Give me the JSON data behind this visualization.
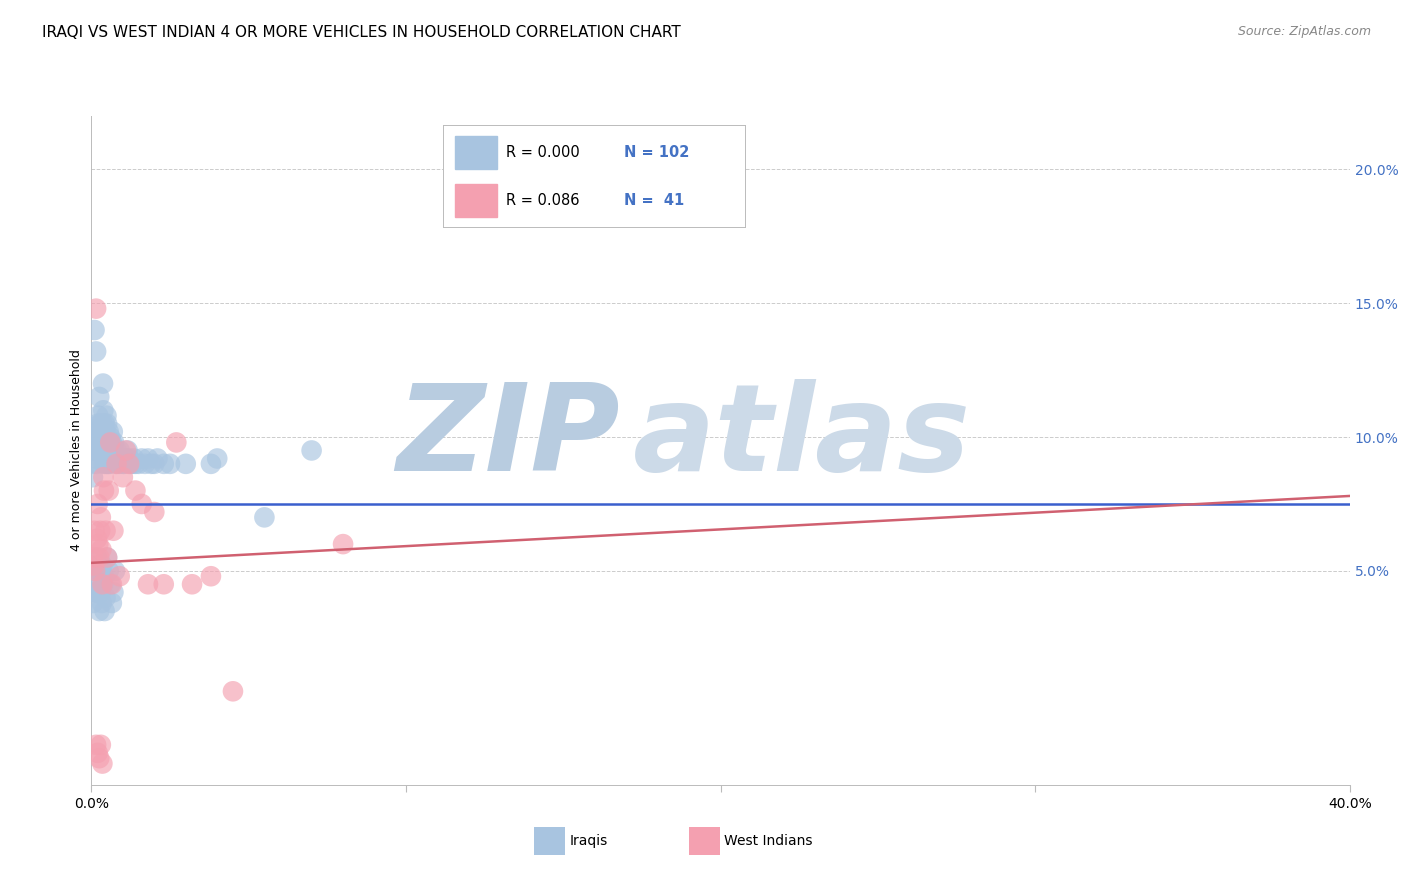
{
  "title": "IRAQI VS WEST INDIAN 4 OR MORE VEHICLES IN HOUSEHOLD CORRELATION CHART",
  "source": "Source: ZipAtlas.com",
  "ylabel": "4 or more Vehicles in Household",
  "xlim": [
    0.0,
    40.0
  ],
  "ylim": [
    -3.0,
    22.0
  ],
  "right_yticks": [
    5.0,
    10.0,
    15.0,
    20.0
  ],
  "right_ytick_labels": [
    "5.0%",
    "10.0%",
    "15.0%",
    "20.0%"
  ],
  "legend_iraqi_r": "0.000",
  "legend_iraqi_n": "102",
  "legend_westindian_r": "0.086",
  "legend_westindian_n": "41",
  "iraqi_color": "#a8c4e0",
  "westindian_color": "#f4a0b0",
  "iraqi_line_color": "#3a5fcd",
  "westindian_line_color": "#d06070",
  "legend_text_color": "#4472c4",
  "title_fontsize": 11,
  "watermark_zip": "ZIP",
  "watermark_atlas": "atlas",
  "watermark_color": "#ccd8e8",
  "background_color": "#ffffff",
  "grid_color": "#cccccc",
  "iraqi_line_y_at_x0": 7.5,
  "iraqi_line_y_at_x40": 7.5,
  "westindian_line_y_at_x0": 5.3,
  "westindian_line_y_at_x40": 7.8,
  "iraqi_x": [
    0.05,
    0.07,
    0.08,
    0.1,
    0.1,
    0.12,
    0.13,
    0.15,
    0.15,
    0.17,
    0.18,
    0.2,
    0.2,
    0.22,
    0.23,
    0.25,
    0.25,
    0.27,
    0.28,
    0.3,
    0.3,
    0.32,
    0.33,
    0.35,
    0.35,
    0.37,
    0.38,
    0.4,
    0.4,
    0.42,
    0.43,
    0.45,
    0.45,
    0.47,
    0.48,
    0.5,
    0.5,
    0.52,
    0.53,
    0.55,
    0.55,
    0.57,
    0.58,
    0.6,
    0.6,
    0.62,
    0.65,
    0.68,
    0.7,
    0.72,
    0.75,
    0.78,
    0.8,
    0.85,
    0.88,
    0.9,
    0.95,
    1.0,
    1.05,
    1.1,
    1.15,
    1.2,
    1.25,
    1.3,
    1.35,
    1.4,
    1.5,
    1.6,
    1.7,
    1.8,
    1.9,
    2.0,
    2.1,
    2.3,
    2.5,
    3.0,
    3.8,
    4.0,
    5.5,
    7.0,
    0.05,
    0.08,
    0.1,
    0.12,
    0.15,
    0.18,
    0.2,
    0.23,
    0.25,
    0.28,
    0.3,
    0.33,
    0.35,
    0.38,
    0.4,
    0.42,
    0.45,
    0.5,
    0.55,
    0.6,
    0.65,
    0.7,
    0.75
  ],
  "iraqi_y": [
    8.5,
    9.0,
    9.5,
    14.0,
    10.0,
    9.5,
    9.8,
    13.2,
    10.2,
    9.5,
    9.0,
    10.5,
    9.2,
    10.8,
    9.5,
    11.5,
    10.0,
    9.8,
    10.5,
    10.2,
    9.5,
    10.0,
    9.8,
    9.5,
    10.5,
    12.0,
    11.0,
    10.0,
    9.0,
    10.5,
    9.8,
    10.2,
    9.0,
    9.5,
    10.8,
    9.0,
    10.5,
    9.8,
    9.0,
    9.5,
    10.2,
    9.8,
    9.0,
    9.5,
    10.0,
    9.2,
    9.8,
    10.2,
    9.5,
    9.8,
    9.2,
    9.0,
    9.5,
    9.2,
    9.0,
    9.5,
    9.2,
    9.0,
    9.0,
    9.2,
    9.5,
    9.2,
    9.0,
    9.0,
    9.2,
    9.0,
    9.0,
    9.2,
    9.0,
    9.2,
    9.0,
    9.0,
    9.2,
    9.0,
    9.0,
    9.0,
    9.0,
    9.2,
    7.0,
    9.5,
    3.8,
    4.2,
    5.0,
    4.5,
    4.2,
    5.5,
    5.2,
    4.8,
    3.5,
    5.0,
    4.2,
    3.8,
    5.2,
    4.5,
    4.8,
    3.5,
    4.0,
    5.5,
    5.0,
    4.5,
    3.8,
    4.2,
    5.0
  ],
  "westindian_x": [
    0.05,
    0.08,
    0.1,
    0.12,
    0.15,
    0.18,
    0.2,
    0.22,
    0.25,
    0.28,
    0.3,
    0.32,
    0.35,
    0.38,
    0.4,
    0.45,
    0.5,
    0.55,
    0.6,
    0.65,
    0.7,
    0.8,
    0.9,
    1.0,
    1.1,
    1.2,
    1.4,
    1.6,
    1.8,
    2.0,
    2.3,
    2.7,
    3.2,
    3.8,
    4.5,
    8.0,
    0.15,
    0.2,
    0.25,
    0.3,
    0.35
  ],
  "westindian_y": [
    5.5,
    5.2,
    6.5,
    5.0,
    14.8,
    6.2,
    7.5,
    6.0,
    5.5,
    6.5,
    7.0,
    5.8,
    4.5,
    8.5,
    8.0,
    6.5,
    5.5,
    8.0,
    9.8,
    4.5,
    6.5,
    9.0,
    4.8,
    8.5,
    9.5,
    9.0,
    8.0,
    7.5,
    4.5,
    7.2,
    4.5,
    9.8,
    4.5,
    4.8,
    0.5,
    6.0,
    -1.5,
    -1.8,
    -2.0,
    -1.5,
    -2.2
  ],
  "xtick_positions": [
    0,
    10,
    20,
    30,
    40
  ],
  "xtick_labels": [
    "0.0%",
    "",
    "",
    "",
    "40.0%"
  ]
}
